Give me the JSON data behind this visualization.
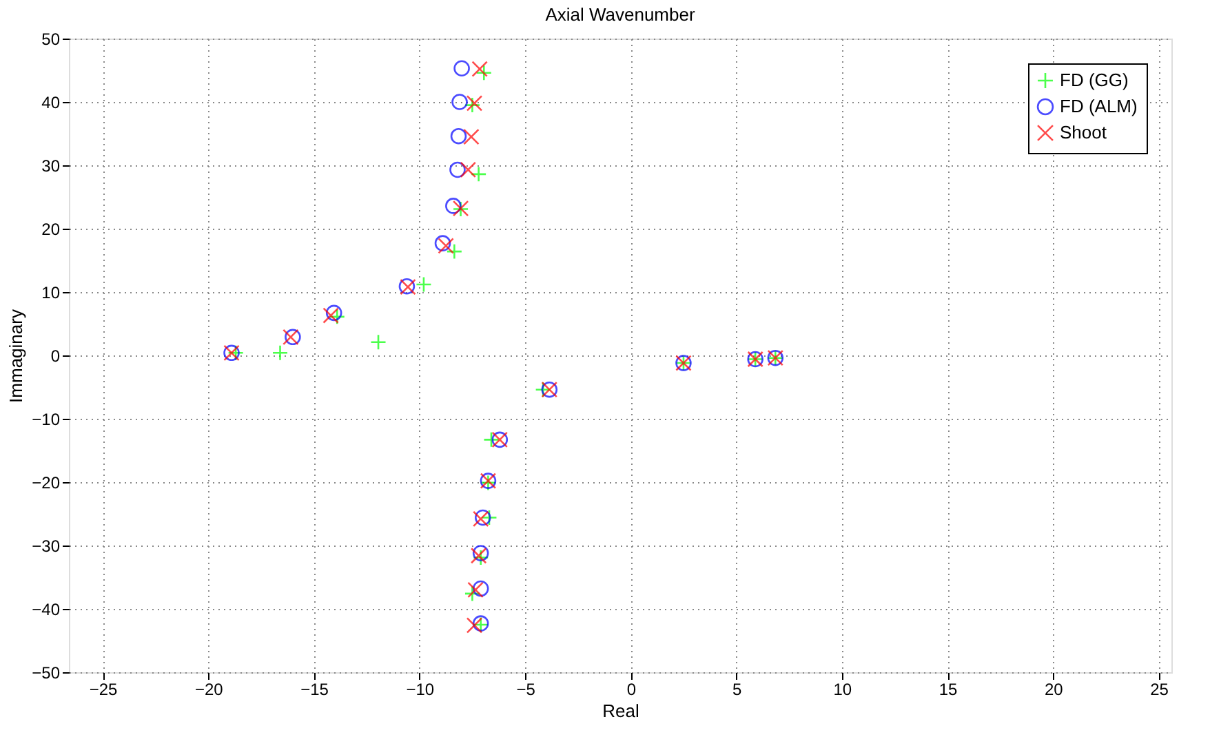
{
  "chart_data": {
    "type": "scatter",
    "title": "Axial Wavenumber",
    "xlabel": "Real",
    "ylabel": "Immaginary",
    "xlim": [
      -26.6,
      25.6
    ],
    "xticks": [
      -25,
      -20,
      -15,
      -10,
      -5,
      0,
      5,
      10,
      15,
      20,
      25
    ],
    "ylim": [
      -50,
      50
    ],
    "yticks": [
      -50,
      -40,
      -30,
      -20,
      -10,
      0,
      10,
      20,
      30,
      40,
      50
    ],
    "grid": true,
    "legend": "top right",
    "series": [
      {
        "name": "FD (GG)",
        "color": "#00ff00",
        "marker": "cross",
        "x": [
          -18.7,
          -16.6,
          -11.95,
          -13.9,
          -9.8,
          -8.35,
          -8.05,
          -7.2,
          -7.5,
          -6.95,
          -4.15,
          -6.6,
          -6.75,
          -6.7,
          -7.1,
          -7.5,
          -7.1,
          2.5,
          5.9,
          6.85
        ],
        "values": [
          0.4,
          0.4,
          2.1,
          6.1,
          11.2,
          16.4,
          23.1,
          28.6,
          39.5,
          44.6,
          -5.4,
          -13.3,
          -20.1,
          -25.6,
          -31.9,
          -37.6,
          -42.5,
          -1.2,
          -0.6,
          -0.4
        ]
      },
      {
        "name": "FD (ALM)",
        "color": "#0000ff",
        "marker": "circle",
        "x": [
          -18.9,
          -16.0,
          -14.05,
          -10.6,
          -8.9,
          -8.4,
          -8.2,
          -8.15,
          -8.1,
          -8.0,
          -3.85,
          -6.2,
          -6.75,
          -7.0,
          -7.1,
          -7.1,
          -7.1,
          2.5,
          5.9,
          6.85
        ],
        "values": [
          0.4,
          2.9,
          6.7,
          10.9,
          17.7,
          23.6,
          29.3,
          34.6,
          40.0,
          45.3,
          -5.4,
          -13.3,
          -19.8,
          -25.6,
          -31.2,
          -36.8,
          -42.3,
          -1.2,
          -0.6,
          -0.4
        ]
      },
      {
        "name": "Shoot",
        "color": "#ff0000",
        "marker": "x",
        "x": [
          -18.9,
          -16.1,
          -14.2,
          -10.55,
          -8.75,
          -8.05,
          -7.7,
          -7.55,
          -7.4,
          -7.15,
          -3.85,
          -6.2,
          -6.75,
          -7.1,
          -7.2,
          -7.35,
          -7.4,
          2.5,
          5.9,
          6.85
        ],
        "values": [
          0.4,
          2.9,
          6.3,
          10.8,
          17.3,
          23.2,
          29.3,
          34.5,
          39.8,
          45.2,
          -5.4,
          -13.3,
          -19.8,
          -25.8,
          -31.6,
          -37.0,
          -42.6,
          -1.2,
          -0.6,
          -0.4
        ]
      }
    ]
  }
}
